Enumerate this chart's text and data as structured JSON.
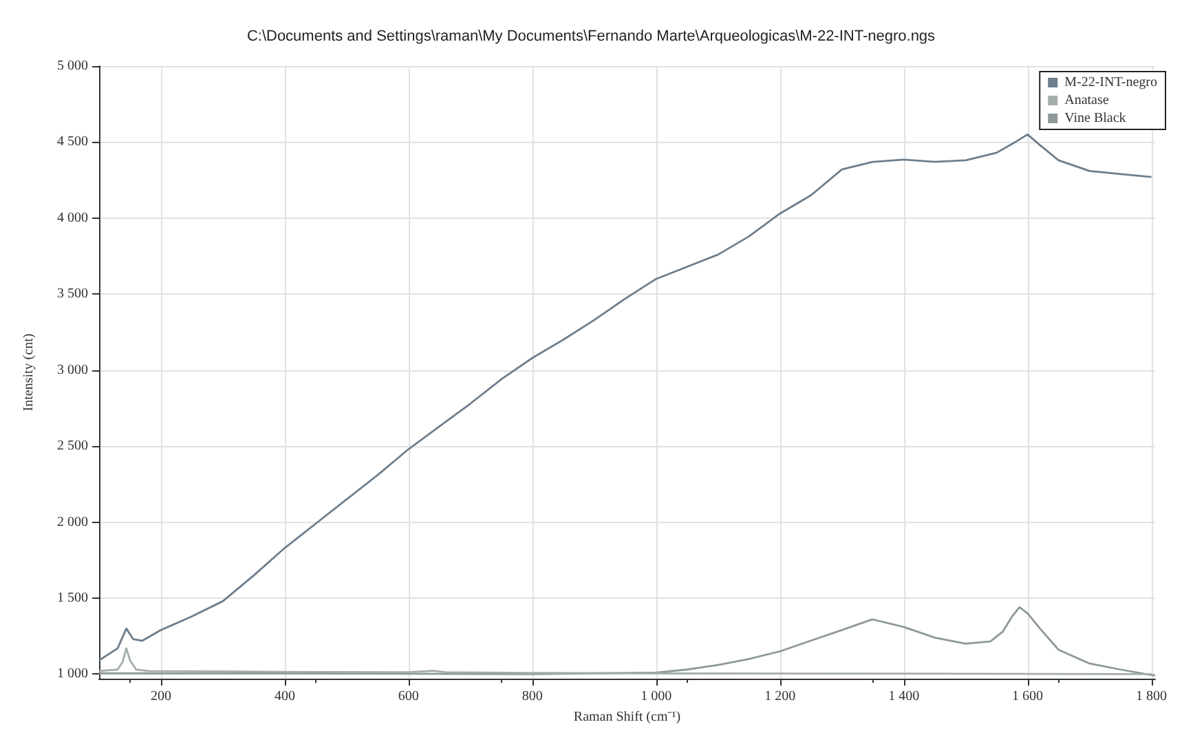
{
  "chart_data": {
    "type": "line",
    "title": "C:\\Documents and Settings\\raman\\My Documents\\Fernando Marte\\Arqueologicas\\M-22-INT-negro.ngs",
    "xlabel": "Raman Shift (cm⁻¹)",
    "ylabel": "Intensity (cnt)",
    "xlim": [
      100,
      1806
    ],
    "ylim": [
      970,
      5000
    ],
    "xticks": [
      200,
      400,
      600,
      800,
      {
        "value": 1000,
        "label": "1 000"
      },
      {
        "value": 1200,
        "label": "1 200"
      },
      {
        "value": 1400,
        "label": "1 400"
      },
      {
        "value": 1600,
        "label": "1 600"
      },
      {
        "value": 1800,
        "label": "1 800"
      }
    ],
    "yticks": [
      {
        "value": 1000,
        "label": "1 000"
      },
      {
        "value": 1500,
        "label": "1 500"
      },
      {
        "value": 2000,
        "label": "2 000"
      },
      {
        "value": 2500,
        "label": "2 500"
      },
      {
        "value": 3000,
        "label": "3 000"
      },
      {
        "value": 3500,
        "label": "3 500"
      },
      {
        "value": 4000,
        "label": "4 000"
      },
      {
        "value": 4500,
        "label": "4 500"
      },
      {
        "value": 5000,
        "label": "5 000"
      }
    ],
    "grid": true,
    "legend": "top right",
    "marker": "none",
    "line_style": "solid",
    "series": [
      {
        "name": "M-22-INT-negro",
        "color": "#6e7e8c",
        "x": [
          100,
          115,
          130,
          144,
          155,
          170,
          200,
          250,
          300,
          350,
          400,
          450,
          500,
          550,
          600,
          650,
          700,
          750,
          800,
          850,
          900,
          950,
          1000,
          1050,
          1100,
          1150,
          1200,
          1250,
          1300,
          1350,
          1400,
          1450,
          1500,
          1550,
          1580,
          1600,
          1620,
          1650,
          1700,
          1750,
          1800
        ],
        "values": [
          1090,
          1130,
          1170,
          1300,
          1230,
          1220,
          1290,
          1380,
          1480,
          1650,
          1830,
          1990,
          2150,
          2310,
          2480,
          2630,
          2780,
          2940,
          3080,
          3200,
          3330,
          3470,
          3600,
          3680,
          3760,
          3880,
          4030,
          4150,
          4320,
          4370,
          4385,
          4370,
          4380,
          4430,
          4500,
          4550,
          4480,
          4380,
          4310,
          4290,
          4270
        ]
      },
      {
        "name": "Anatase",
        "color": "#a4acac",
        "x": [
          100,
          130,
          138,
          144,
          150,
          160,
          180,
          300,
          400,
          600,
          640,
          660,
          800,
          1000,
          1400,
          1800
        ],
        "values": [
          1020,
          1030,
          1080,
          1170,
          1090,
          1030,
          1020,
          1018,
          1015,
          1012,
          1022,
          1012,
          1008,
          1005,
          1003,
          1000
        ]
      },
      {
        "name": "Vine Black",
        "color": "#8e9898",
        "x": [
          100,
          400,
          800,
          1000,
          1050,
          1100,
          1150,
          1200,
          1250,
          1300,
          1349,
          1400,
          1450,
          1500,
          1540,
          1560,
          1575,
          1587,
          1600,
          1620,
          1650,
          1700,
          1750,
          1806
        ],
        "values": [
          1005,
          1005,
          1000,
          1010,
          1030,
          1060,
          1100,
          1150,
          1220,
          1290,
          1360,
          1310,
          1240,
          1200,
          1215,
          1280,
          1380,
          1440,
          1400,
          1300,
          1160,
          1070,
          1030,
          990
        ]
      }
    ]
  }
}
